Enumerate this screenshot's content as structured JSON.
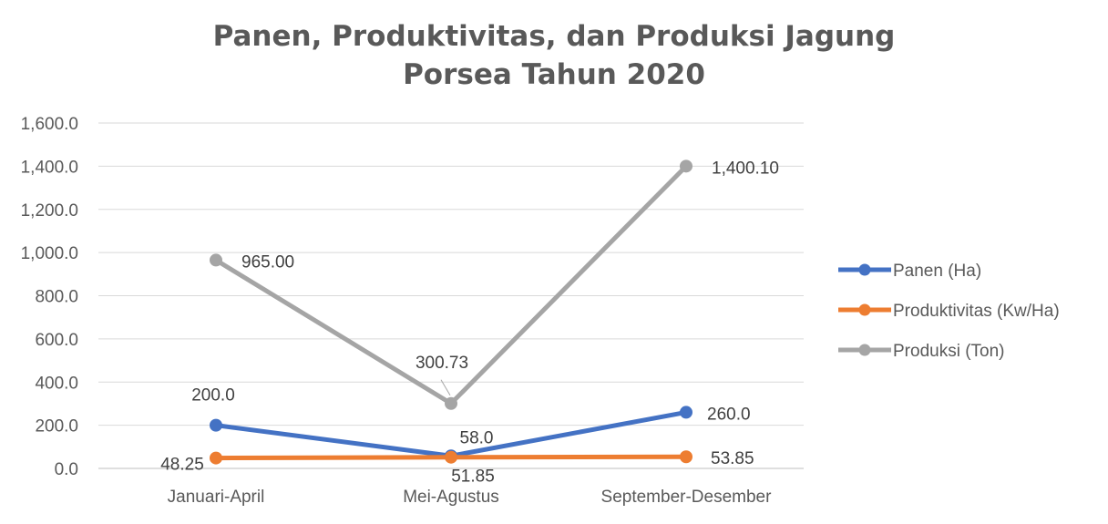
{
  "chart_data": {
    "type": "line",
    "title_lines": [
      "Panen, Produktivitas, dan Produksi Jagung",
      "Porsea Tahun 2020"
    ],
    "xlabel": "",
    "ylabel": "",
    "categories": [
      "Januari-April",
      "Mei-Agustus",
      "September-Desember"
    ],
    "ylim": [
      0,
      1600
    ],
    "yticks": [
      0,
      200,
      400,
      600,
      800,
      1000,
      1200,
      1400,
      1600
    ],
    "ytick_labels": [
      "0.0",
      "200.0",
      "400.0",
      "600.0",
      "800.0",
      "1,000.0",
      "1,200.0",
      "1,400.0",
      "1,600.0"
    ],
    "grid": true,
    "legend_position": "right",
    "series": [
      {
        "name": "Panen (Ha)",
        "color": "#4472C4",
        "values": [
          200.0,
          58.0,
          260.0
        ],
        "labels": [
          "200.0",
          "58.0",
          "260.0"
        ]
      },
      {
        "name": "Produktivitas (Kw/Ha)",
        "color": "#ED7D31",
        "values": [
          48.25,
          51.85,
          53.85
        ],
        "labels": [
          "48.25",
          "51.85",
          "53.85"
        ]
      },
      {
        "name": "Produksi (Ton)",
        "color": "#A5A5A5",
        "values": [
          965.0,
          300.73,
          1400.1
        ],
        "labels": [
          "965.00",
          "300.73",
          "1,400.10"
        ]
      }
    ]
  }
}
